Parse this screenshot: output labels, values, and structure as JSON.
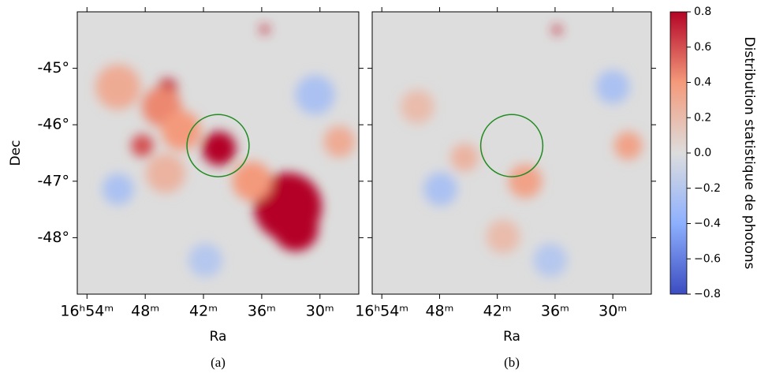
{
  "chart_data": [
    {
      "type": "heatmap",
      "caption": "(a)",
      "xlabel": "Ra",
      "ylabel": "Dec",
      "xlim": [
        55,
        26
      ],
      "ylim": [
        -49,
        -44
      ],
      "xticks": [
        {
          "value": 54,
          "label": "16ʰ54ᵐ"
        },
        {
          "value": 48,
          "label": "48ᵐ"
        },
        {
          "value": 42,
          "label": "42ᵐ"
        },
        {
          "value": 36,
          "label": "36ᵐ"
        },
        {
          "value": 30,
          "label": "30ᵐ"
        }
      ],
      "yticks": [
        {
          "value": -45,
          "label": "-45°"
        },
        {
          "value": -46,
          "label": "-46°"
        },
        {
          "value": -47,
          "label": "-47°"
        },
        {
          "value": -48,
          "label": "-48°"
        }
      ],
      "circle": {
        "x": 40.5,
        "y": -46.37,
        "radius": 0.55,
        "color": "#228b22"
      },
      "blobs": {
        "x": [
          40.4,
          33.3,
          32.5,
          45.7,
          46.3,
          48.3,
          50.8,
          44.3,
          37,
          35.7,
          28,
          45.9,
          50.8,
          30.5,
          41.8
        ],
        "y": [
          -46.42,
          -47.45,
          -47.84,
          -45.35,
          -45.68,
          -46.37,
          -45.33,
          -46.1,
          -47,
          -44.31,
          -46.3,
          -46.86,
          -47.14,
          -45.47,
          -48.4
        ],
        "size": [
          0.3,
          0.6,
          0.4,
          0.17,
          0.35,
          0.2,
          0.4,
          0.35,
          0.35,
          0.08,
          0.28,
          0.35,
          0.28,
          0.35,
          0.3
        ],
        "values": [
          0.8,
          0.8,
          0.8,
          0.7,
          0.45,
          0.6,
          0.3,
          0.4,
          0.4,
          0.7,
          0.3,
          0.25,
          -0.25,
          -0.25,
          -0.2
        ]
      }
    },
    {
      "type": "heatmap",
      "caption": "(b)",
      "xlabel": "Ra",
      "xlim": [
        55,
        26
      ],
      "ylim": [
        -49,
        -44
      ],
      "xticks": [
        {
          "value": 54,
          "label": "16ʰ54ᵐ"
        },
        {
          "value": 48,
          "label": "48ᵐ"
        },
        {
          "value": 42,
          "label": "42ᵐ"
        },
        {
          "value": 36,
          "label": "36ᵐ"
        },
        {
          "value": 30,
          "label": "30ᵐ"
        }
      ],
      "yticks": [
        -45,
        -46,
        -47,
        -48
      ],
      "circle": {
        "x": 40.5,
        "y": -46.37,
        "radius": 0.55,
        "color": "#228b22"
      },
      "blobs": {
        "x": [
          35.8,
          28.4,
          39.1,
          50.3,
          45.4,
          47.9,
          30,
          41.4,
          36.5
        ],
        "y": [
          -44.32,
          -46.37,
          -47,
          -45.68,
          -46.58,
          -47.14,
          -45.33,
          -47.98,
          -48.4
        ],
        "size": [
          0.08,
          0.25,
          0.3,
          0.3,
          0.25,
          0.3,
          0.3,
          0.3,
          0.3
        ],
        "values": [
          0.7,
          0.35,
          0.35,
          0.2,
          0.25,
          -0.25,
          -0.25,
          0.2,
          -0.2
        ]
      }
    }
  ],
  "colorbar": {
    "label": "Distribution statistique de photons",
    "colormap": "coolwarm",
    "lim": [
      -0.8,
      0.8
    ],
    "ticks": [
      0.8,
      0.6,
      0.4,
      0.2,
      {
        "value": 0,
        "label": "0.0"
      },
      {
        "value": -0.2,
        "label": "−0.2"
      },
      {
        "value": -0.4,
        "label": "−0.4"
      },
      {
        "value": -0.6,
        "label": "−0.6"
      },
      {
        "value": -0.8,
        "label": "−0.8"
      }
    ]
  }
}
